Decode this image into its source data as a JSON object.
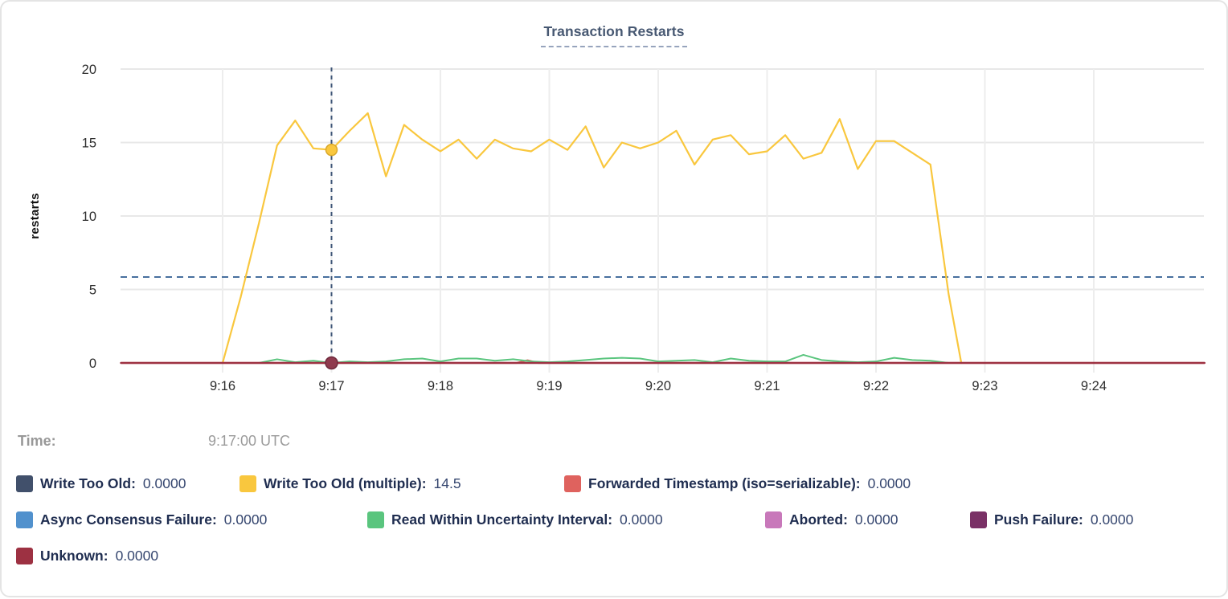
{
  "card": {
    "title": "Transaction Restarts"
  },
  "time_row": {
    "label": "Time:",
    "value": "9:17:00 UTC"
  },
  "legend": {
    "items": [
      {
        "label": "Write Too Old:",
        "value": "0.0000",
        "color": "#41506b"
      },
      {
        "label": "Write Too Old (multiple):",
        "value": "14.5",
        "color": "#f9c73e"
      },
      {
        "label": "Forwarded Timestamp (iso=serializable):",
        "value": "0.0000",
        "color": "#df625e"
      },
      {
        "label": "Async Consensus Failure:",
        "value": "0.0000",
        "color": "#5191cd"
      },
      {
        "label": "Read Within Uncertainty Interval:",
        "value": "0.0000",
        "color": "#5ac57e"
      },
      {
        "label": "Aborted:",
        "value": "0.0000",
        "color": "#c878ba"
      },
      {
        "label": "Push Failure:",
        "value": "0.0000",
        "color": "#7a3166"
      },
      {
        "label": "Unknown:",
        "value": "0.0000",
        "color": "#9d3142"
      }
    ]
  },
  "chart_data": {
    "type": "line",
    "title": "Transaction Restarts",
    "xlabel": "",
    "ylabel": "restarts",
    "ylim": [
      0,
      20
    ],
    "yticks": [
      0,
      5,
      10,
      15,
      20
    ],
    "xticks": [
      "9:16",
      "9:17",
      "9:18",
      "9:19",
      "9:20",
      "9:21",
      "9:22",
      "9:23",
      "9:24"
    ],
    "x_unit": "seconds since 9:15:00 UTC; minute ticks at 60..540",
    "x_domain_seconds": [
      4,
      601
    ],
    "grid": true,
    "legend_position": "bottom",
    "average_rule_value": 5.85,
    "hover": {
      "time": "9:17:00 UTC",
      "t": 120,
      "crosshair_color": "#3f5677",
      "dots": [
        {
          "series": "Write Too Old (multiple)",
          "v": 14.5,
          "fill": "#f9c73e",
          "stroke": "#d9a82a",
          "r": 7
        },
        {
          "series": "Unknown",
          "v": 0,
          "fill": "#8f3a4e",
          "stroke": "#6e2a3c",
          "r": 7.5
        }
      ]
    },
    "series": [
      {
        "name": "Write Too Old",
        "slug": "write-too-old",
        "color": "#41506b",
        "width": 2,
        "points": [
          [
            4,
            0
          ],
          [
            601,
            0
          ]
        ]
      },
      {
        "name": "Write Too Old (multiple)",
        "slug": "write-too-old-multiple",
        "color": "#f9c73e",
        "width": 2.2,
        "points": [
          [
            60,
            0
          ],
          [
            70,
            4.5
          ],
          [
            80,
            9.5
          ],
          [
            90,
            14.8
          ],
          [
            100,
            16.5
          ],
          [
            110,
            14.6
          ],
          [
            120,
            14.5
          ],
          [
            130,
            15.8
          ],
          [
            140,
            17.0
          ],
          [
            150,
            12.7
          ],
          [
            160,
            16.2
          ],
          [
            170,
            15.2
          ],
          [
            180,
            14.4
          ],
          [
            190,
            15.2
          ],
          [
            200,
            13.9
          ],
          [
            210,
            15.2
          ],
          [
            220,
            14.6
          ],
          [
            230,
            14.4
          ],
          [
            240,
            15.2
          ],
          [
            250,
            14.5
          ],
          [
            260,
            16.1
          ],
          [
            270,
            13.3
          ],
          [
            280,
            15.0
          ],
          [
            290,
            14.6
          ],
          [
            300,
            15.0
          ],
          [
            310,
            15.8
          ],
          [
            320,
            13.5
          ],
          [
            330,
            15.2
          ],
          [
            340,
            15.5
          ],
          [
            350,
            14.2
          ],
          [
            360,
            14.4
          ],
          [
            370,
            15.5
          ],
          [
            380,
            13.9
          ],
          [
            390,
            14.3
          ],
          [
            400,
            16.6
          ],
          [
            410,
            13.2
          ],
          [
            420,
            15.1
          ],
          [
            430,
            15.1
          ],
          [
            440,
            14.3
          ],
          [
            450,
            13.5
          ],
          [
            460,
            4.7
          ],
          [
            467,
            0
          ]
        ]
      },
      {
        "name": "Forwarded Timestamp (iso=serializable)",
        "slug": "forwarded-timestamp",
        "color": "#df625e",
        "width": 2.2,
        "points": [
          [
            4,
            0
          ],
          [
            222,
            0
          ],
          [
            228,
            0.18
          ],
          [
            234,
            0
          ],
          [
            601,
            0
          ]
        ]
      },
      {
        "name": "Async Consensus Failure",
        "slug": "async-consensus-failure",
        "color": "#5191cd",
        "width": 2,
        "points": [
          [
            4,
            0
          ],
          [
            601,
            0
          ]
        ]
      },
      {
        "name": "Read Within Uncertainty Interval",
        "slug": "read-within-uncertainty-interval",
        "color": "#5ac57e",
        "width": 2,
        "points": [
          [
            80,
            0
          ],
          [
            90,
            0.25
          ],
          [
            100,
            0.05
          ],
          [
            110,
            0.15
          ],
          [
            120,
            0
          ],
          [
            130,
            0.1
          ],
          [
            140,
            0.05
          ],
          [
            150,
            0.1
          ],
          [
            160,
            0.25
          ],
          [
            170,
            0.3
          ],
          [
            180,
            0.1
          ],
          [
            190,
            0.3
          ],
          [
            200,
            0.3
          ],
          [
            210,
            0.15
          ],
          [
            220,
            0.25
          ],
          [
            230,
            0.1
          ],
          [
            240,
            0.05
          ],
          [
            250,
            0.1
          ],
          [
            260,
            0.2
          ],
          [
            270,
            0.3
          ],
          [
            280,
            0.35
          ],
          [
            290,
            0.3
          ],
          [
            300,
            0.1
          ],
          [
            310,
            0.15
          ],
          [
            320,
            0.2
          ],
          [
            330,
            0.05
          ],
          [
            340,
            0.3
          ],
          [
            350,
            0.15
          ],
          [
            360,
            0.1
          ],
          [
            370,
            0.1
          ],
          [
            380,
            0.55
          ],
          [
            390,
            0.2
          ],
          [
            400,
            0.1
          ],
          [
            410,
            0.05
          ],
          [
            420,
            0.1
          ],
          [
            430,
            0.35
          ],
          [
            440,
            0.2
          ],
          [
            450,
            0.15
          ],
          [
            460,
            0
          ]
        ]
      },
      {
        "name": "Aborted",
        "slug": "aborted",
        "color": "#c878ba",
        "width": 2,
        "points": [
          [
            4,
            0
          ],
          [
            601,
            0
          ]
        ]
      },
      {
        "name": "Push Failure",
        "slug": "push-failure",
        "color": "#7a3166",
        "width": 2,
        "points": [
          [
            4,
            0
          ],
          [
            601,
            0
          ]
        ]
      },
      {
        "name": "Unknown",
        "slug": "unknown",
        "color": "#9d3142",
        "width": 2.5,
        "points": [
          [
            4,
            0
          ],
          [
            601,
            0
          ]
        ]
      }
    ]
  }
}
